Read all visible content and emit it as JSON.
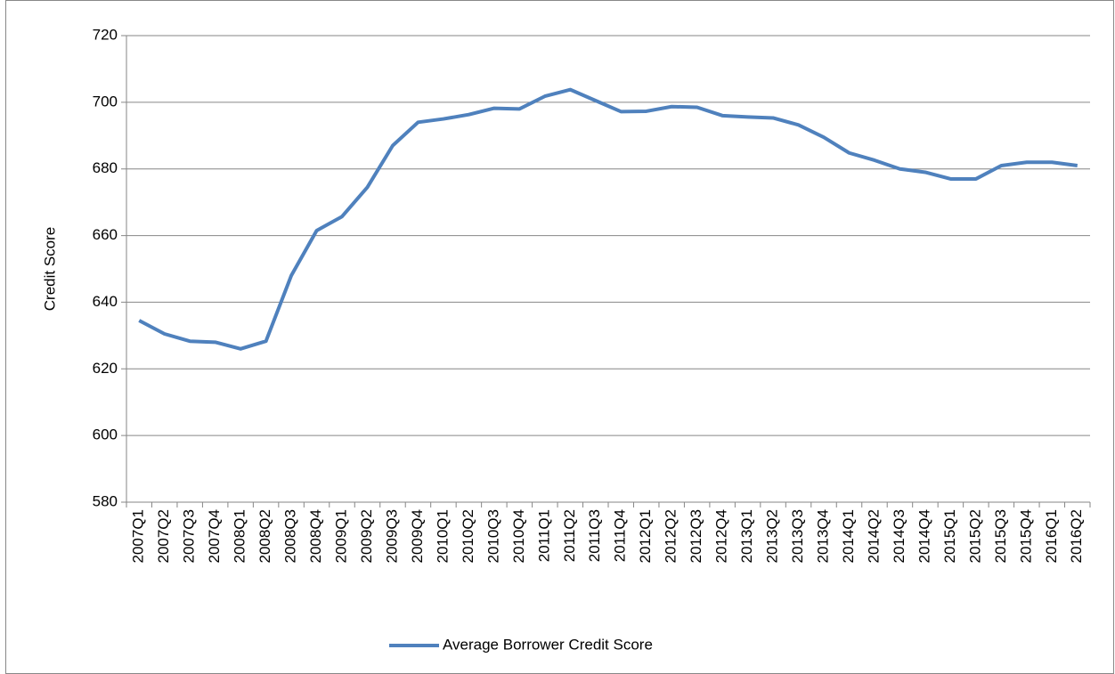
{
  "chart_data": {
    "type": "line",
    "y_label": "Credit Score",
    "categories": [
      "2007Q1",
      "2007Q2",
      "2007Q3",
      "2007Q4",
      "2008Q1",
      "2008Q2",
      "2008Q3",
      "2008Q4",
      "2009Q1",
      "2009Q2",
      "2009Q3",
      "2009Q4",
      "2010Q1",
      "2010Q2",
      "2010Q3",
      "2010Q4",
      "2011Q1",
      "2011Q2",
      "2011Q3",
      "2011Q4",
      "2012Q1",
      "2012Q2",
      "2012Q3",
      "2012Q4",
      "2013Q1",
      "2013Q2",
      "2013Q3",
      "2013Q4",
      "2014Q1",
      "2014Q2",
      "2014Q3",
      "2014Q4",
      "2015Q1",
      "2015Q2",
      "2015Q3",
      "2015Q4",
      "2016Q1",
      "2016Q2"
    ],
    "series": [
      {
        "name": "Average Borrower Credit Score",
        "color": "#4f81bd",
        "values": [
          634.5,
          630.5,
          628.3,
          628,
          626,
          628.3,
          648,
          661.5,
          665.7,
          674.5,
          687,
          694,
          695,
          696.3,
          698.2,
          698,
          701.8,
          703.8,
          700.5,
          697.2,
          697.3,
          698.7,
          698.5,
          696,
          695.6,
          695.3,
          693.2,
          689.5,
          684.8,
          682.6,
          680,
          679,
          677,
          677,
          681,
          682,
          682,
          681
        ]
      }
    ],
    "ylim": [
      580,
      720
    ],
    "yticks": [
      580,
      600,
      620,
      640,
      660,
      680,
      700,
      720
    ],
    "grid": true,
    "legend": "bottom"
  }
}
